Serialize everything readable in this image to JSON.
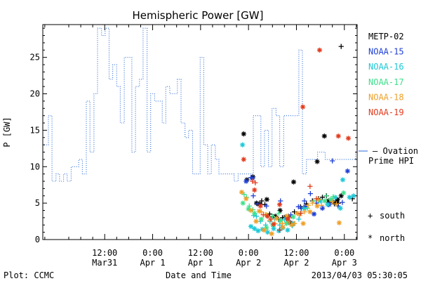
{
  "footer": {
    "plot_credit": "Plot: CCMC",
    "timestamp": "2013/04/03 05:30:05"
  },
  "legend": {
    "ovation_line1": "— Ovation",
    "ovation_line2": "Prime HPI",
    "south_symbol": "+",
    "south_label": "south",
    "north_symbol": "*",
    "north_label": "north"
  },
  "colors": {
    "METP-02": "#000000",
    "NOAA-15": "#1f3fd6",
    "NOAA-16": "#1ec8d8",
    "NOAA-17": "#3ee08a",
    "NOAA-18": "#f0a028",
    "NOAA-19": "#e23b1e",
    "ovation": "#2a6ad8"
  },
  "chart_data": {
    "type": "line",
    "title": "Hemispheric Power [GW]",
    "xlabel": "Date and Time",
    "ylabel": "P [GW]",
    "xlim_hours": [
      -15.5,
      63.2
    ],
    "ylim": [
      0,
      29.5
    ],
    "yticks": [
      0,
      5,
      10,
      15,
      20,
      25
    ],
    "xticks": [
      {
        "hour": 0,
        "line1": "12:00",
        "line2": "Mar31"
      },
      {
        "hour": 12,
        "line1": "0:00",
        "line2": "Apr 1"
      },
      {
        "hour": 24,
        "line1": "12:00",
        "line2": "Apr 1"
      },
      {
        "hour": 36,
        "line1": "0:00",
        "line2": "Apr 2"
      },
      {
        "hour": 48,
        "line1": "12:00",
        "line2": "Apr 2"
      },
      {
        "hour": 60,
        "line1": "0:00",
        "line2": "Apr 3"
      }
    ],
    "x_reference_time": "2013-03-31 12:00",
    "series": [
      {
        "name": "Ovation Prime HPI",
        "style": "dotted-step",
        "x": [
          -15.2,
          -14.1,
          -13.2,
          -12.2,
          -11.3,
          -10.3,
          -9.4,
          -8.4,
          -7.5,
          -6.5,
          -5.6,
          -4.6,
          -3.7,
          -2.7,
          -1.8,
          -0.8,
          0.1,
          1.1,
          2.0,
          3.0,
          3.9,
          4.9,
          5.8,
          6.8,
          7.7,
          8.7,
          9.6,
          10.6,
          11.5,
          12.5,
          13.4,
          14.4,
          15.3,
          16.3,
          17.2,
          18.2,
          19.1,
          20.1,
          21.0,
          22.0,
          22.9,
          23.9,
          24.8,
          25.8,
          26.7,
          27.7,
          28.6,
          29.6,
          30.5,
          31.5,
          32.4,
          33.4,
          34.3,
          35.3,
          36.2,
          37.2,
          38.1,
          39.1,
          40.0,
          41.0,
          41.9,
          42.9,
          43.8,
          44.8,
          45.7,
          46.7,
          47.6,
          48.6,
          49.5,
          50.5,
          51.4,
          52.4,
          53.3,
          54.3,
          55.2,
          56.2,
          57.1,
          58.1,
          59.0,
          60.0,
          60.9,
          61.9,
          62.8
        ],
        "values": [
          13,
          17,
          8,
          9,
          8,
          9,
          8,
          10,
          10,
          11,
          9,
          19,
          12,
          20,
          29,
          28,
          29,
          22,
          24,
          21,
          16,
          25,
          25,
          12,
          21,
          22,
          29,
          12,
          20,
          19,
          19,
          16,
          21,
          20,
          20,
          22,
          16,
          14,
          15,
          9,
          9,
          25,
          13,
          9,
          13,
          11,
          9,
          9,
          9,
          9,
          8,
          9,
          9,
          9,
          9,
          17,
          17,
          10,
          15,
          10,
          18,
          17,
          10,
          17,
          17,
          17,
          17,
          26,
          9,
          11,
          11,
          11,
          12,
          12,
          11,
          11,
          11,
          11,
          11,
          11,
          11,
          11,
          12
        ]
      },
      {
        "name": "METP-02",
        "marker_by_hemisphere": true,
        "south_points": [
          [
            39.3,
            5.3
          ],
          [
            40.1,
            4.8
          ],
          [
            41.3,
            3.5
          ],
          [
            42.0,
            3.1
          ],
          [
            43.5,
            2.8
          ],
          [
            44.5,
            3.0
          ],
          [
            46.0,
            3.2
          ],
          [
            47.5,
            3.8
          ],
          [
            49.0,
            4.5
          ],
          [
            50.5,
            4.9
          ],
          [
            52.0,
            5.3
          ],
          [
            53.5,
            5.6
          ],
          [
            54.5,
            5.8
          ],
          [
            55.5,
            6.0
          ],
          [
            56.7,
            5.3
          ],
          [
            57.5,
            4.9
          ],
          [
            58.5,
            5.0
          ],
          [
            59.2,
            26.5
          ],
          [
            62.0,
            5.6
          ]
        ],
        "north_points": [
          [
            34.8,
            14.5
          ],
          [
            35.6,
            8.2
          ],
          [
            37.1,
            8.6
          ],
          [
            38.0,
            5.0
          ],
          [
            38.8,
            4.9
          ],
          [
            40.6,
            5.5
          ],
          [
            42.7,
            3.2
          ],
          [
            43.9,
            4.0
          ],
          [
            45.3,
            3.1
          ],
          [
            46.5,
            2.3
          ],
          [
            47.3,
            7.9
          ],
          [
            53.2,
            10.7
          ],
          [
            55.0,
            14.2
          ],
          [
            56.0,
            5.3
          ],
          [
            57.8,
            5.1
          ],
          [
            58.3,
            5.5
          ],
          [
            59.2,
            6.0
          ]
        ]
      },
      {
        "name": "NOAA-15",
        "marker_by_hemisphere": true,
        "south_points": [
          [
            36.6,
            8.5
          ],
          [
            37.2,
            6.0
          ],
          [
            38.2,
            4.9
          ],
          [
            40.5,
            4.6
          ],
          [
            44.0,
            5.3
          ],
          [
            45.4,
            3.0
          ],
          [
            46.6,
            3.4
          ],
          [
            48.5,
            4.5
          ],
          [
            49.2,
            4.3
          ],
          [
            50.0,
            5.3
          ],
          [
            51.5,
            6.3
          ],
          [
            53.0,
            5.0
          ],
          [
            56.0,
            4.8
          ],
          [
            57.0,
            10.8
          ],
          [
            58.4,
            4.6
          ],
          [
            59.5,
            5.1
          ]
        ],
        "north_points": [
          [
            35.4,
            8.0
          ],
          [
            37.0,
            8.4
          ],
          [
            50.2,
            4.5
          ],
          [
            52.4,
            3.5
          ],
          [
            54.5,
            4.3
          ],
          [
            56.2,
            4.8
          ],
          [
            60.8,
            9.4
          ]
        ]
      },
      {
        "name": "NOAA-16",
        "marker_by_hemisphere": true,
        "south_points": [
          [
            37.3,
            3.3
          ],
          [
            38.0,
            3.2
          ],
          [
            39.0,
            2.5
          ],
          [
            40.3,
            2.0
          ],
          [
            41.4,
            2.5
          ],
          [
            42.5,
            2.9
          ],
          [
            43.8,
            2.0
          ],
          [
            45.0,
            2.7
          ],
          [
            47.0,
            1.9
          ],
          [
            48.6,
            2.8
          ]
        ],
        "north_points": [
          [
            34.5,
            13.0
          ],
          [
            36.6,
            1.8
          ],
          [
            37.5,
            1.5
          ],
          [
            38.4,
            1.2
          ],
          [
            39.5,
            1.4
          ],
          [
            40.8,
            1.0
          ],
          [
            42.3,
            1.5
          ],
          [
            43.6,
            1.2
          ],
          [
            44.5,
            1.6
          ],
          [
            45.8,
            1.3
          ],
          [
            47.3,
            2.2
          ],
          [
            50.0,
            4.2
          ],
          [
            54.0,
            5.3
          ],
          [
            55.8,
            4.8
          ],
          [
            56.9,
            5.4
          ],
          [
            57.7,
            5.8
          ],
          [
            59.0,
            4.3
          ],
          [
            59.6,
            8.2
          ],
          [
            61.3,
            5.8
          ],
          [
            62.3,
            6.0
          ]
        ]
      },
      {
        "name": "NOAA-17",
        "marker_by_hemisphere": true,
        "south_points": [
          [
            34.9,
            6.2
          ],
          [
            35.5,
            5.8
          ],
          [
            36.2,
            4.6
          ],
          [
            37.1,
            4.1
          ],
          [
            40.6,
            3.3
          ],
          [
            42.0,
            3.2
          ],
          [
            43.6,
            3.6
          ],
          [
            45.6,
            2.4
          ],
          [
            49.2,
            3.6
          ],
          [
            50.8,
            4.3
          ],
          [
            52.3,
            5.3
          ],
          [
            53.4,
            5.4
          ],
          [
            55.4,
            6.0
          ],
          [
            57.2,
            5.9
          ]
        ],
        "north_points": [
          [
            34.6,
            5.0
          ],
          [
            36.0,
            4.2
          ],
          [
            37.5,
            3.6
          ],
          [
            39.2,
            2.8
          ],
          [
            40.5,
            1.6
          ],
          [
            42.1,
            2.0
          ],
          [
            44.0,
            2.6
          ],
          [
            45.5,
            2.2
          ],
          [
            47.2,
            3.1
          ],
          [
            55.1,
            5.3
          ],
          [
            56.6,
            5.5
          ],
          [
            59.8,
            6.4
          ]
        ]
      },
      {
        "name": "NOAA-18",
        "marker_by_hemisphere": true,
        "south_points": [
          [
            39.2,
            3.8
          ],
          [
            40.2,
            3.4
          ],
          [
            41.3,
            2.6
          ],
          [
            42.6,
            2.2
          ],
          [
            44.5,
            2.2
          ],
          [
            46.2,
            2.4
          ],
          [
            47.5,
            2.2
          ],
          [
            48.8,
            3.3
          ],
          [
            50.0,
            3.8
          ],
          [
            51.0,
            4.7
          ],
          [
            52.0,
            5.0
          ],
          [
            53.6,
            5.5
          ],
          [
            54.3,
            4.7
          ],
          [
            57.0,
            5.2
          ],
          [
            58.0,
            4.9
          ]
        ],
        "north_points": [
          [
            34.3,
            6.5
          ],
          [
            35.4,
            5.6
          ],
          [
            36.6,
            4.0
          ],
          [
            37.9,
            2.5
          ],
          [
            38.7,
            3.9
          ],
          [
            39.9,
            1.3
          ],
          [
            40.5,
            3.4
          ],
          [
            41.8,
            0.8
          ],
          [
            43.0,
            2.9
          ],
          [
            44.6,
            1.7
          ],
          [
            45.6,
            3.2
          ],
          [
            46.8,
            2.0
          ],
          [
            48.2,
            3.6
          ],
          [
            49.7,
            2.2
          ],
          [
            51.4,
            3.8
          ],
          [
            53.2,
            4.6
          ],
          [
            58.7,
            2.3
          ]
        ]
      },
      {
        "name": "NOAA-19",
        "marker_by_hemisphere": true,
        "south_points": [
          [
            37.0,
            8.0
          ],
          [
            37.7,
            7.8
          ],
          [
            39.7,
            3.4
          ],
          [
            41.6,
            2.8
          ],
          [
            43.8,
            1.3
          ],
          [
            46.2,
            3.0
          ],
          [
            49.0,
            3.6
          ],
          [
            51.4,
            7.3
          ],
          [
            53.0,
            5.6
          ]
        ],
        "north_points": [
          [
            34.8,
            11.0
          ],
          [
            37.5,
            6.8
          ],
          [
            39.0,
            4.6
          ],
          [
            40.8,
            3.2
          ],
          [
            42.3,
            2.1
          ],
          [
            43.8,
            4.8
          ],
          [
            45.8,
            2.8
          ],
          [
            49.6,
            18.2
          ],
          [
            53.8,
            26.0
          ],
          [
            58.5,
            14.2
          ],
          [
            61.0,
            13.9
          ]
        ]
      }
    ]
  }
}
